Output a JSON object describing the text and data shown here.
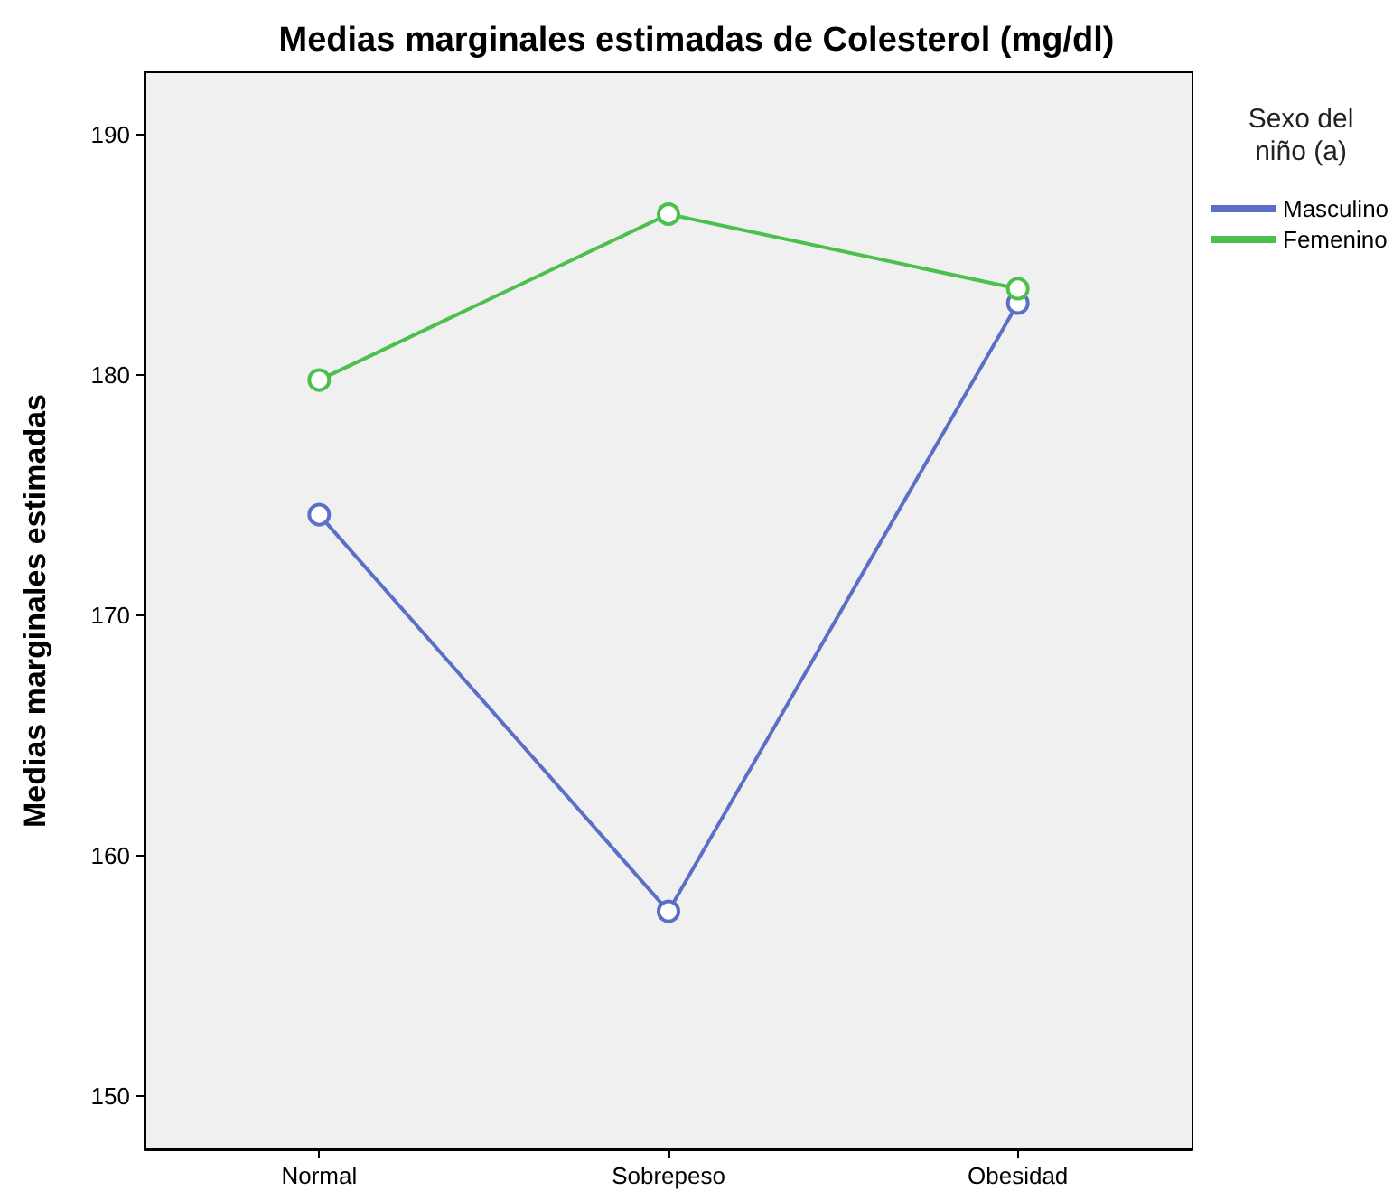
{
  "chart_data": {
    "type": "line",
    "title": "Medias marginales estimadas de Colesterol (mg/dl)",
    "ylabel": "Medias marginales estimadas",
    "legend_title": "Sexo del\nniño (a)",
    "categories": [
      "Normal",
      "Sobrepeso",
      "Obesidad"
    ],
    "series": [
      {
        "name": "Masculino",
        "color": "#5b6fc6",
        "values": [
          174.2,
          157.7,
          183.0
        ]
      },
      {
        "name": "Femenino",
        "color": "#4cc04c",
        "values": [
          179.8,
          186.7,
          183.6
        ]
      }
    ],
    "ylim": [
      147.8,
      192.6
    ],
    "yticks": [
      150,
      160,
      170,
      180,
      190
    ],
    "grid": false,
    "legend": "top right",
    "marker": "circle",
    "line_style": "solid"
  }
}
